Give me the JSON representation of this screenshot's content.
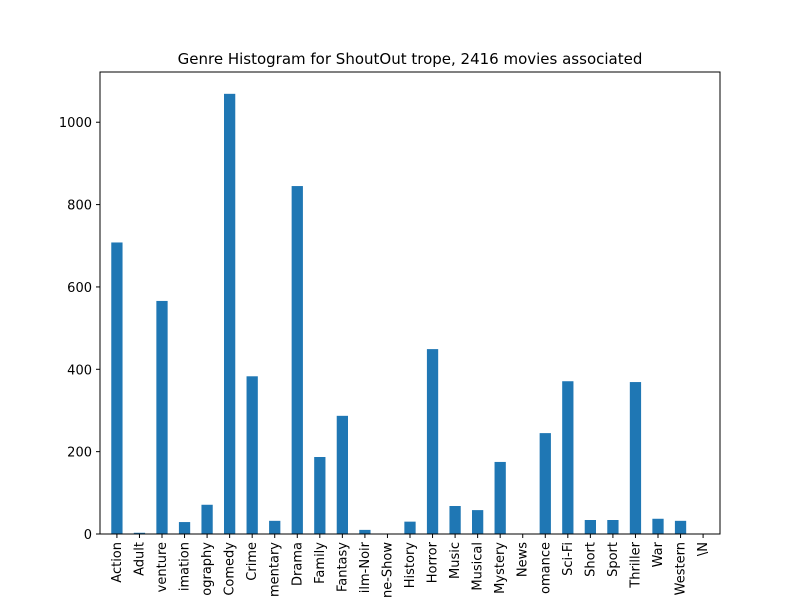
{
  "chart_data": {
    "type": "bar",
    "title": "Genre Histogram for ShoutOut trope, 2416 movies associated",
    "xlabel": "",
    "ylabel": "",
    "categories": [
      "Action",
      "Adult",
      "Adventure",
      "Animation",
      "Biography",
      "Comedy",
      "Crime",
      "Documentary",
      "Drama",
      "Family",
      "Fantasy",
      "Film-Noir",
      "Game-Show",
      "History",
      "Horror",
      "Music",
      "Musical",
      "Mystery",
      "News",
      "Romance",
      "Sci-Fi",
      "Short",
      "Sport",
      "Thriller",
      "War",
      "Western",
      "\\N"
    ],
    "tick_labels": [
      "Action",
      "Adult",
      "venture",
      "imation",
      "ography",
      "Comedy",
      "Crime",
      "mentary",
      "Drama",
      "Family",
      "Fantasy",
      "ilm-Noir",
      "ne-Show",
      "History",
      "Horror",
      "Music",
      "Musical",
      "Mystery",
      "News",
      "omance",
      "Sci-Fi",
      "Short",
      "Sport",
      "Thriller",
      "War",
      "Western",
      "\\N"
    ],
    "values": [
      708,
      3,
      566,
      29,
      71,
      1069,
      383,
      32,
      845,
      187,
      287,
      10,
      1,
      30,
      449,
      68,
      58,
      175,
      1,
      245,
      371,
      34,
      34,
      369,
      37,
      32,
      1
    ],
    "ylim": [
      0,
      1122
    ],
    "yticks": [
      0,
      200,
      400,
      600,
      800,
      1000
    ],
    "bar_color": "#1f77b4",
    "grid": false,
    "legend": "none"
  }
}
